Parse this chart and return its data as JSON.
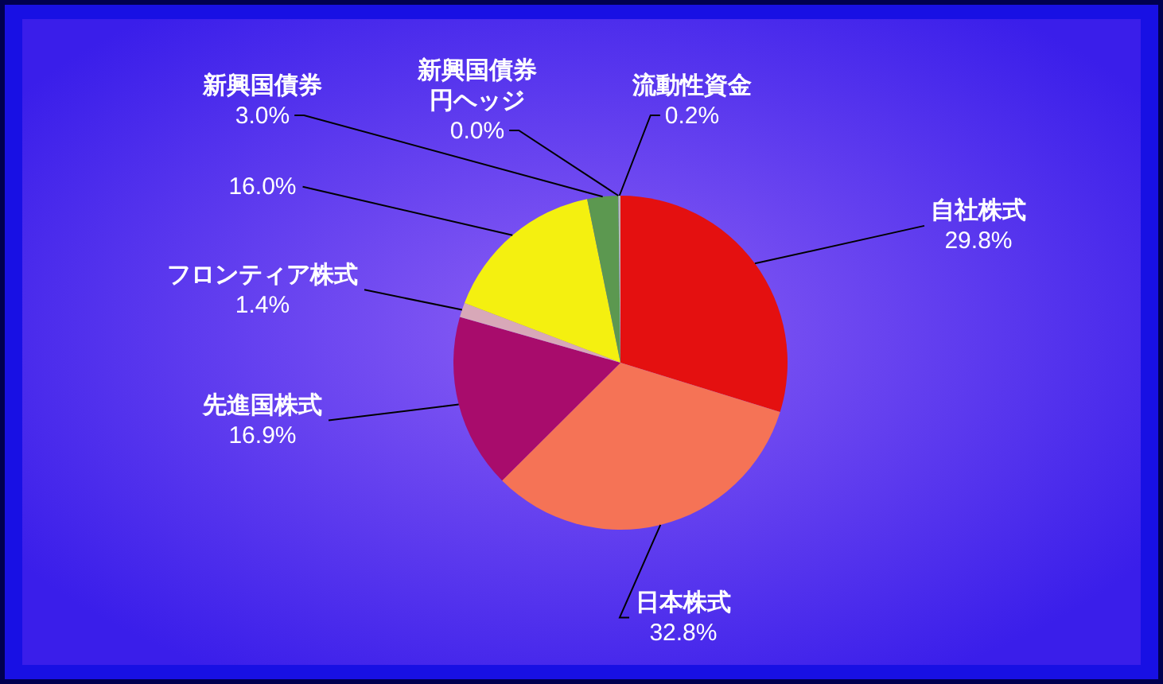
{
  "chart_data": {
    "type": "pie",
    "categories": [
      "自社株式",
      "日本株式",
      "先進国株式",
      "フロンティア株式",
      null,
      "新興国債券",
      "新興国債券円ヘッジ",
      "流動性資金"
    ],
    "values": [
      29.8,
      32.8,
      16.9,
      1.4,
      16.0,
      3.0,
      0.0,
      0.2
    ],
    "value_labels": [
      "29.8%",
      "32.8%",
      "16.9%",
      "1.4%",
      "16.0%",
      "3.0%",
      "0.0%",
      "0.2%"
    ],
    "colors": [
      "#e41010",
      "#f57356",
      "#a80c6c",
      "#d8a8b8",
      "#f4f010",
      "#5c9850",
      null,
      "#b8b8b8"
    ]
  }
}
